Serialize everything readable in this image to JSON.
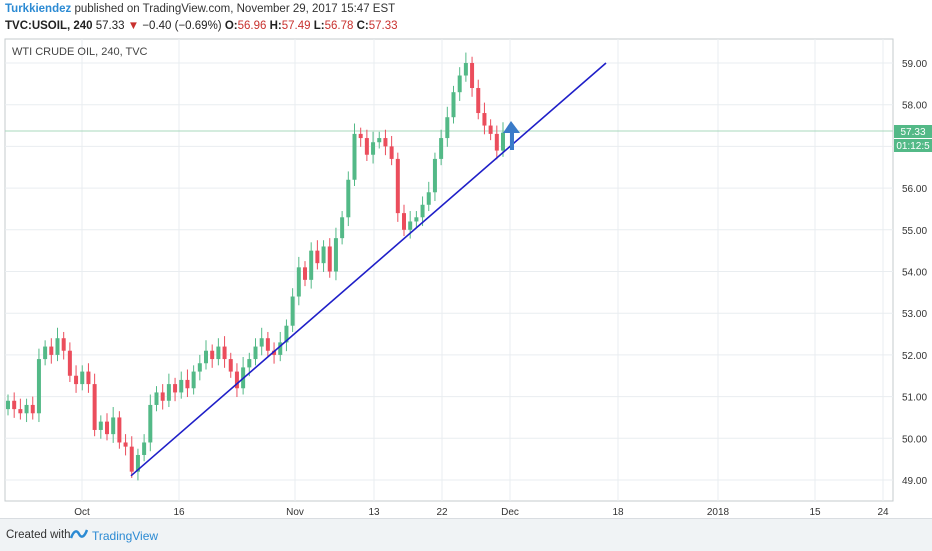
{
  "header": {
    "author": "Turkkiendez",
    "published_text": " published on TradingView.com, November 29, 2017 15:47 EST",
    "symbol_line": "TVC:USOIL, 240",
    "last": "57.33",
    "change_arrow": "▼",
    "change": "−0.40 (−0.69%)",
    "o_label": "O:",
    "o_val": "56.96",
    "h_label": "H:",
    "h_val": "57.49",
    "l_label": "L:",
    "l_val": "56.78",
    "c_label": "C:",
    "c_val": "57.33"
  },
  "chart_data": {
    "type": "candlestick",
    "title": "WTI CRUDE OIL, 240, TVC",
    "ylim": [
      48.6,
      59.4
    ],
    "y_ticks": [
      "49.00",
      "50.00",
      "51.00",
      "52.00",
      "53.00",
      "54.00",
      "55.00",
      "56.00",
      "57.00",
      "58.00",
      "59.00"
    ],
    "x_ticks": [
      "Oct",
      "16",
      "Nov",
      "13",
      "22",
      "Dec",
      "18",
      "2018",
      "15",
      "24"
    ],
    "last_price": "57.33",
    "countdown": "01:12:5",
    "candle_closes": [
      50.9,
      50.7,
      50.6,
      50.8,
      50.6,
      51.9,
      52.2,
      52.0,
      52.4,
      52.1,
      51.5,
      51.3,
      51.6,
      51.3,
      50.2,
      50.4,
      50.1,
      50.5,
      49.9,
      49.8,
      49.2,
      49.6,
      49.9,
      50.8,
      51.1,
      50.9,
      51.3,
      51.1,
      51.4,
      51.2,
      51.6,
      51.8,
      52.1,
      51.9,
      52.2,
      51.9,
      51.6,
      51.2,
      51.7,
      51.9,
      52.2,
      52.4,
      52.1,
      52.0,
      52.3,
      52.7,
      53.4,
      54.1,
      53.8,
      54.5,
      54.2,
      54.6,
      54.0,
      54.8,
      55.3,
      56.2,
      57.3,
      57.2,
      56.8,
      57.1,
      57.2,
      57.0,
      56.7,
      55.4,
      55.0,
      55.2,
      55.3,
      55.6,
      55.9,
      56.7,
      57.2,
      57.7,
      58.3,
      58.7,
      59.0,
      58.4,
      57.8,
      57.5,
      57.3,
      56.9,
      57.33
    ],
    "trendline": {
      "from": {
        "x": "Oct 10",
        "y": 49.1
      },
      "to": {
        "x": "Dec 18",
        "y": 59.0
      }
    },
    "arrow": "up",
    "colors": {
      "up": "#53b987",
      "down": "#eb4d5c",
      "trend": "#1f1fc8",
      "arrow": "#3a7bc8",
      "price_tag": "#53b987",
      "grid": "#e9edf0"
    }
  },
  "footer": {
    "created_with": "Created with",
    "brand": "TradingView"
  }
}
